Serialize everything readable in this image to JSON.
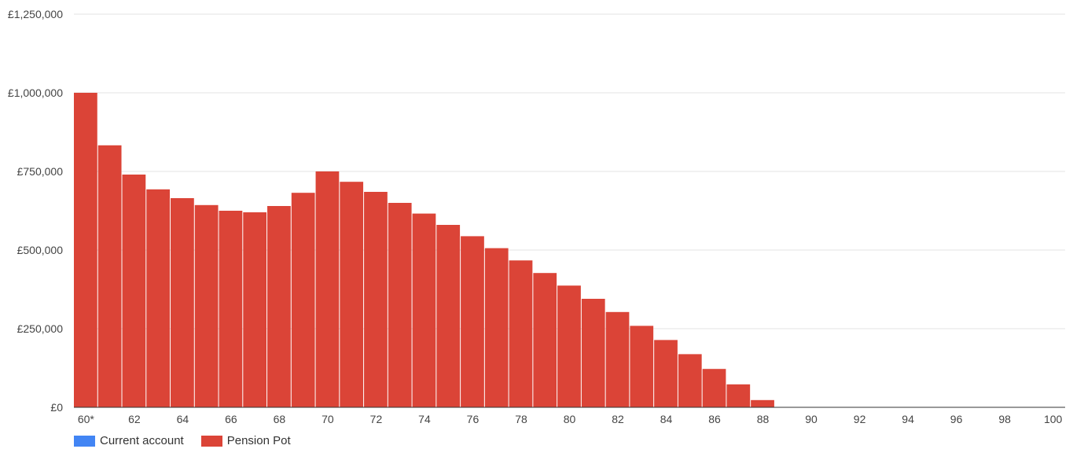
{
  "chart_data": {
    "type": "bar",
    "categories": [
      "60*",
      "61",
      "62",
      "63",
      "64",
      "65",
      "66",
      "67",
      "68",
      "69",
      "70",
      "71",
      "72",
      "73",
      "74",
      "75",
      "76",
      "77",
      "78",
      "79",
      "80",
      "81",
      "82",
      "83",
      "84",
      "85",
      "86",
      "87",
      "88",
      "89",
      "90",
      "91",
      "92",
      "93",
      "94",
      "95",
      "96",
      "97",
      "98",
      "99",
      "100"
    ],
    "x_tick_labels": [
      "60*",
      "62",
      "64",
      "66",
      "68",
      "70",
      "72",
      "74",
      "76",
      "78",
      "80",
      "82",
      "84",
      "86",
      "88",
      "90",
      "92",
      "94",
      "96",
      "98",
      "100"
    ],
    "series": [
      {
        "name": "Current account",
        "color": "#4285f4",
        "values": [
          0,
          0,
          0,
          0,
          0,
          0,
          0,
          0,
          0,
          0,
          0,
          0,
          0,
          0,
          0,
          0,
          0,
          0,
          0,
          0,
          0,
          0,
          0,
          0,
          0,
          0,
          0,
          0,
          0,
          0,
          0,
          0,
          0,
          0,
          0,
          0,
          0,
          0,
          0,
          0,
          0
        ]
      },
      {
        "name": "Pension Pot",
        "color": "#db4437",
        "values": [
          1000000,
          833000,
          740000,
          693000,
          665000,
          643000,
          625000,
          620000,
          640000,
          682000,
          750000,
          717000,
          685000,
          650000,
          616000,
          580000,
          544000,
          506000,
          467000,
          427000,
          387000,
          345000,
          303000,
          259000,
          214000,
          169000,
          122000,
          73000,
          23000,
          0,
          0,
          0,
          0,
          0,
          0,
          0,
          0,
          0,
          0,
          0,
          0
        ]
      }
    ],
    "y_ticks": [
      0,
      250000,
      500000,
      750000,
      1000000,
      1250000
    ],
    "y_tick_labels": [
      "£0",
      "£250,000",
      "£500,000",
      "£750,000",
      "£1,000,000",
      "£1,250,000"
    ],
    "ylim": [
      0,
      1250000
    ],
    "grid": true,
    "legend_position": "bottom-left"
  }
}
